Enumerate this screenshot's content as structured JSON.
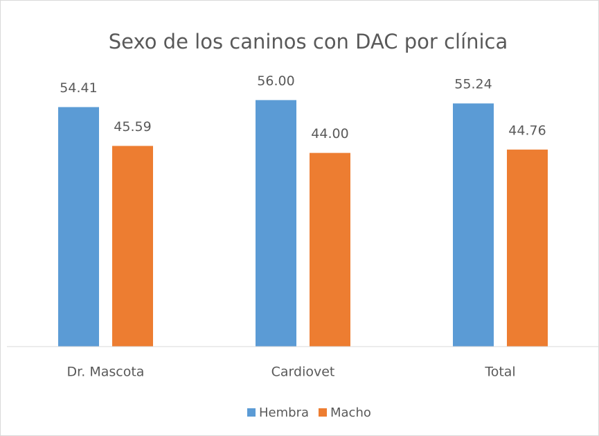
{
  "chart_data": {
    "type": "bar",
    "title": "Sexo de los caninos con DAC por clínica",
    "categories": [
      "Dr. Mascota",
      "Cardiovet",
      "Total"
    ],
    "series": [
      {
        "name": "Hembra",
        "color": "#5b9bd5",
        "values": [
          54.41,
          56.0,
          55.24
        ],
        "value_labels": [
          "54.41",
          "56.00",
          "55.24"
        ]
      },
      {
        "name": "Macho",
        "color": "#ed7d31",
        "values": [
          45.59,
          44.0,
          44.76
        ],
        "value_labels": [
          "45.59",
          "44.00",
          "44.76"
        ]
      }
    ],
    "ylim": [
      0,
      60
    ]
  }
}
